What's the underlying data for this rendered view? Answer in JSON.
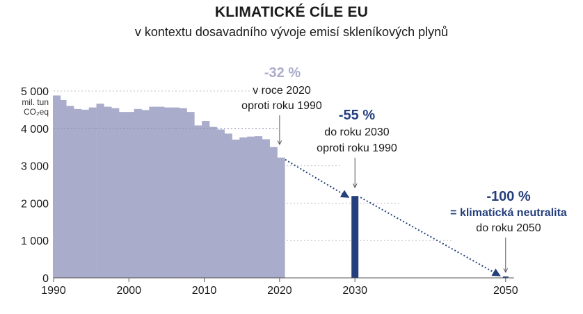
{
  "chart_data": {
    "type": "bar",
    "title": "KLIMATICKÉ CÍLE EU",
    "subtitle": "v kontextu dosavadního vývoje emisí skleníkových plynů",
    "ylabel_lines": [
      "mil. tun",
      "CO₂eq"
    ],
    "ylim": [
      0,
      5000
    ],
    "yticks": [
      0,
      1000,
      2000,
      3000,
      4000,
      5000
    ],
    "ytick_labels": [
      "0",
      "1 000",
      "2 000",
      "3 000",
      "4 000",
      "5 000"
    ],
    "xticks": [
      1990,
      2000,
      2010,
      2020,
      2030,
      2050
    ],
    "xtick_labels": [
      "1990",
      "2000",
      "2010",
      "2020",
      "2030",
      "2050"
    ],
    "history": {
      "x": [
        1990,
        1991,
        1992,
        1993,
        1994,
        1995,
        1996,
        1997,
        1998,
        1999,
        2000,
        2001,
        2002,
        2003,
        2004,
        2005,
        2006,
        2007,
        2008,
        2009,
        2010,
        2011,
        2012,
        2013,
        2014,
        2015,
        2016,
        2017,
        2018,
        2019,
        2020
      ],
      "values": [
        4880,
        4760,
        4600,
        4520,
        4500,
        4560,
        4660,
        4580,
        4540,
        4440,
        4440,
        4520,
        4490,
        4580,
        4580,
        4560,
        4560,
        4540,
        4440,
        4080,
        4200,
        4040,
        3970,
        3860,
        3700,
        3760,
        3780,
        3790,
        3710,
        3500,
        3220
      ],
      "color": "#aaaccb"
    },
    "targets": [
      {
        "year": 2030,
        "value": 2190,
        "color": "#243f7c"
      },
      {
        "year": 2050,
        "value": 0,
        "color": "#243f7c"
      }
    ],
    "annotations": [
      {
        "id": "a2020",
        "year": 2020,
        "value": 3220,
        "pct": "-32 %",
        "lines": [
          "v roce 2020",
          "oproti roku 1990"
        ],
        "pct_color": "#aaaccb"
      },
      {
        "id": "a2030",
        "year": 2030,
        "value": 2190,
        "pct": "-55 %",
        "lines": [
          "do roku 2030",
          "oproti roku 1990"
        ],
        "pct_color": "#243f7c"
      },
      {
        "id": "a2050",
        "year": 2050,
        "value": 0,
        "pct": "-100 %",
        "lines": [
          "= klimatická neutralita",
          "do roku 2050"
        ],
        "pct_color": "#243f7c",
        "highlight_first_line": true
      }
    ],
    "grid": true,
    "trend_line": "dotted"
  }
}
